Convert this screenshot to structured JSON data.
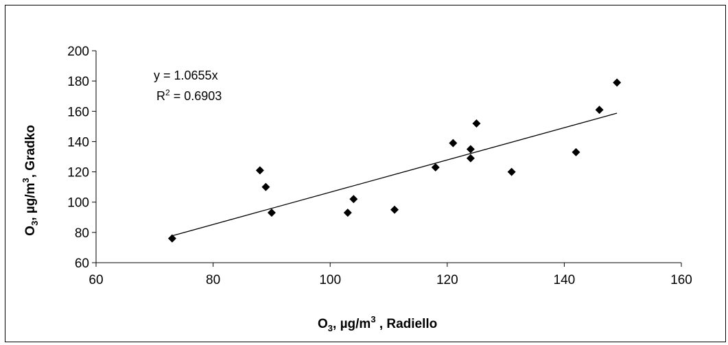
{
  "chart_data": {
    "type": "scatter",
    "xlabel": {
      "main": "O",
      "sub": "3",
      "rest": ", µg/m",
      "sup": "3",
      "tail": " , Radiello"
    },
    "ylabel": {
      "main": "O",
      "sub": "3",
      "rest": ", µg/m",
      "sup": "3",
      "tail": ", Gradko"
    },
    "xlim": [
      60,
      160
    ],
    "ylim": [
      60,
      200
    ],
    "xticks": [
      60,
      80,
      100,
      120,
      140,
      160
    ],
    "yticks": [
      60,
      80,
      100,
      120,
      140,
      160,
      180,
      200
    ],
    "grid": false,
    "marker_color": "#000000",
    "points": [
      {
        "x": 73,
        "y": 76
      },
      {
        "x": 88,
        "y": 121
      },
      {
        "x": 89,
        "y": 110
      },
      {
        "x": 90,
        "y": 93
      },
      {
        "x": 103,
        "y": 93
      },
      {
        "x": 104,
        "y": 102
      },
      {
        "x": 111,
        "y": 95
      },
      {
        "x": 118,
        "y": 123
      },
      {
        "x": 121,
        "y": 139
      },
      {
        "x": 124,
        "y": 135
      },
      {
        "x": 124,
        "y": 129
      },
      {
        "x": 125,
        "y": 152
      },
      {
        "x": 131,
        "y": 120
      },
      {
        "x": 142,
        "y": 133
      },
      {
        "x": 146,
        "y": 161
      },
      {
        "x": 149,
        "y": 179
      }
    ],
    "trendline": {
      "slope": 1.0655,
      "intercept": 0,
      "x_start": 73,
      "x_end": 149
    },
    "annotations": {
      "equation": "y = 1.0655x",
      "r2_prefix": "R",
      "r2_sup": "2",
      "r2_value": " = 0.6903"
    }
  }
}
